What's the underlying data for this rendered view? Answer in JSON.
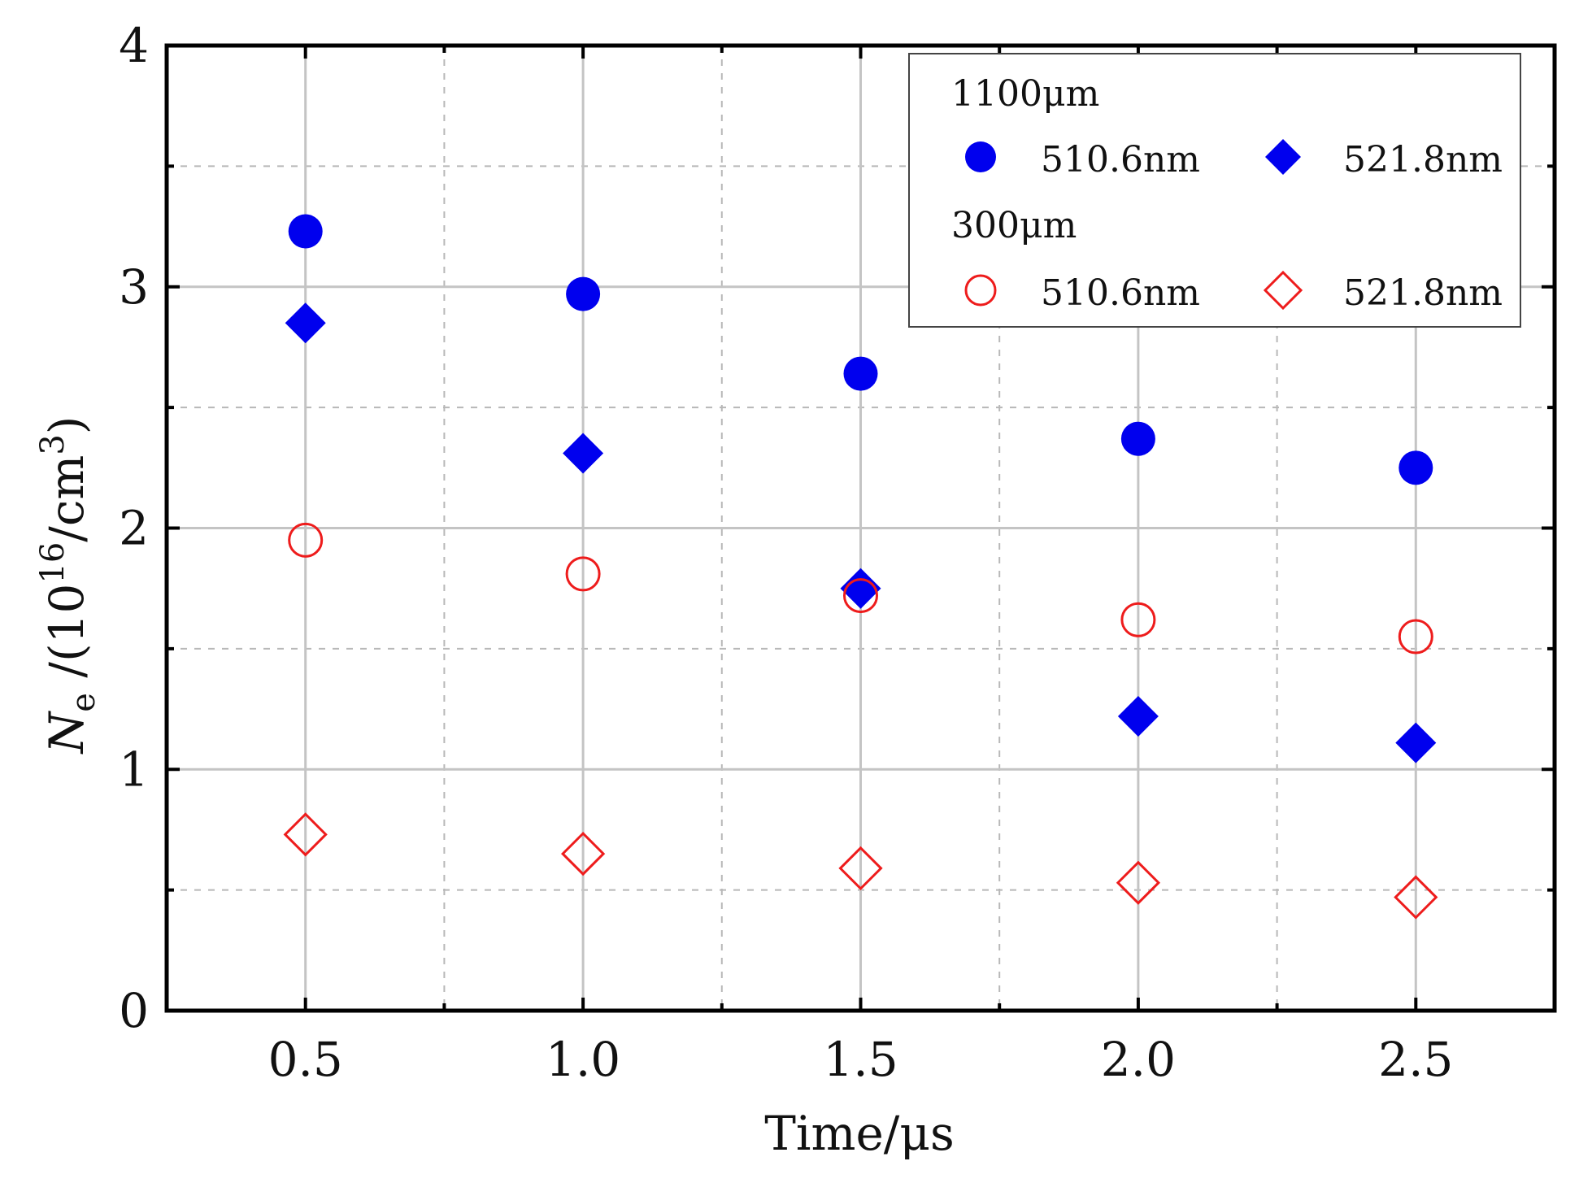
{
  "chart_data": {
    "type": "scatter",
    "xlabel": "Time/μs",
    "ylabel": {
      "symbol": "N",
      "subscript": "e",
      "prefix": " /(10",
      "superscript": "16",
      "middle": "/cm",
      "superscript2": "3",
      "suffix": ")"
    },
    "xlim": [
      0.25,
      2.75
    ],
    "ylim": [
      0,
      4
    ],
    "x_ticks": [
      0.5,
      1.0,
      1.5,
      2.0,
      2.5
    ],
    "x_tick_labels": [
      "0.5",
      "1.0",
      "1.5",
      "2.0",
      "2.5"
    ],
    "x_minor_ticks": [
      0.75,
      1.25,
      1.75,
      2.25
    ],
    "y_ticks": [
      0,
      1,
      2,
      3,
      4
    ],
    "y_tick_labels": [
      "0",
      "1",
      "2",
      "3",
      "4"
    ],
    "y_minor_ticks": [
      0.5,
      1.5,
      2.5,
      3.5
    ],
    "grid": true,
    "legend_position": "top-right",
    "legend": {
      "groups": [
        {
          "label": "1100μm",
          "entries": [
            "510.6nm",
            "521.8nm"
          ]
        },
        {
          "label": "300μm",
          "entries": [
            "510.6nm",
            "521.8nm"
          ]
        }
      ]
    },
    "series": [
      {
        "name": "1100μm 510.6nm",
        "group": "1100μm",
        "wavelength": "510.6nm",
        "marker": "circle",
        "filled": true,
        "color": "#0000ee",
        "x": [
          0.5,
          1.0,
          1.5,
          2.0,
          2.5
        ],
        "y": [
          3.23,
          2.97,
          2.64,
          2.37,
          2.25
        ]
      },
      {
        "name": "1100μm 521.8nm",
        "group": "1100μm",
        "wavelength": "521.8nm",
        "marker": "diamond",
        "filled": true,
        "color": "#0000ee",
        "x": [
          0.5,
          1.0,
          1.5,
          2.0,
          2.5
        ],
        "y": [
          2.85,
          2.31,
          1.75,
          1.22,
          1.11
        ]
      },
      {
        "name": "300μm 510.6nm",
        "group": "300μm",
        "wavelength": "510.6nm",
        "marker": "circle",
        "filled": false,
        "color": "#ee1c1c",
        "x": [
          0.5,
          1.0,
          1.5,
          2.0,
          2.5
        ],
        "y": [
          1.95,
          1.81,
          1.72,
          1.62,
          1.55
        ]
      },
      {
        "name": "300μm 521.8nm",
        "group": "300μm",
        "wavelength": "521.8nm",
        "marker": "diamond",
        "filled": false,
        "color": "#ee1c1c",
        "x": [
          0.5,
          1.0,
          1.5,
          2.0,
          2.5
        ],
        "y": [
          0.73,
          0.65,
          0.59,
          0.53,
          0.47
        ]
      }
    ]
  }
}
